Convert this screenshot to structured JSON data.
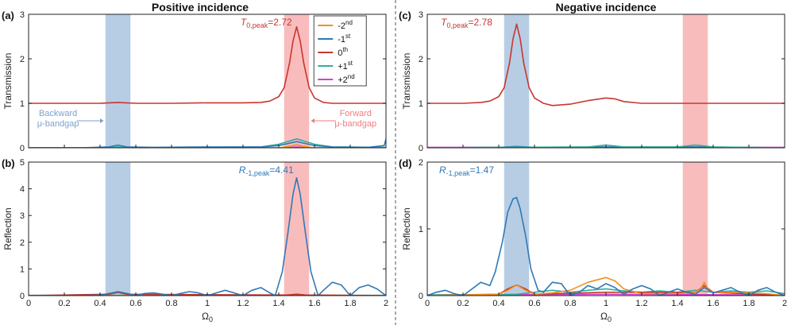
{
  "figure": {
    "left_title": "Positive incidence",
    "right_title": "Negative incidence",
    "xlabel": "Ω",
    "xlabel_sub": "0",
    "colors": {
      "-2nd": "#f28e1c",
      "-1st": "#2f79b5",
      "0th": "#c8362f",
      "+1st": "#2bb09c",
      "+2nd": "#d93fd1"
    },
    "band_colors": {
      "backward": "#b7cde4",
      "forward": "#f9bcbd"
    }
  },
  "legend": [
    {
      "key": "-2nd",
      "base": "-2",
      "sup": "nd"
    },
    {
      "key": "-1st",
      "base": "-1",
      "sup": "st"
    },
    {
      "key": "0th",
      "base": "0",
      "sup": "th"
    },
    {
      "key": "+1st",
      "base": "+1",
      "sup": "st"
    },
    {
      "key": "+2nd",
      "base": "+2",
      "sup": "nd"
    }
  ],
  "annotations": {
    "backward_l1": "Backward",
    "backward_l2": "μ-bandgap",
    "forward_l1": "Forward",
    "forward_l2": "μ-bandgap"
  },
  "chart_data": [
    {
      "id": "a",
      "label": "(a)",
      "type": "line",
      "xlabel": "",
      "ylabel": "Transmission",
      "xlim": [
        0,
        2
      ],
      "ylim": [
        0,
        3
      ],
      "yticks": [
        0,
        1,
        2,
        3
      ],
      "xticks": [],
      "bands": [
        [
          0.43,
          0.57
        ],
        [
          1.43,
          1.57
        ]
      ],
      "peak": {
        "sym": "T",
        "sub": "0,peak",
        "value": "=2.72",
        "color": "#c8362f"
      },
      "series": [
        {
          "name": "0th",
          "color": "#c8362f",
          "x": [
            0,
            0.2,
            0.4,
            0.5,
            0.6,
            0.8,
            1.0,
            1.2,
            1.3,
            1.35,
            1.4,
            1.43,
            1.46,
            1.48,
            1.5,
            1.52,
            1.54,
            1.57,
            1.6,
            1.65,
            1.7,
            1.8,
            2.0
          ],
          "y": [
            1,
            1,
            1,
            1.02,
            1,
            1,
            1.01,
            1.01,
            1.02,
            1.05,
            1.15,
            1.35,
            1.9,
            2.4,
            2.72,
            2.4,
            1.9,
            1.35,
            1.12,
            1.02,
            1.0,
            1.0,
            1.0
          ]
        },
        {
          "name": "-1st",
          "color": "#2f79b5",
          "x": [
            0,
            0.3,
            0.45,
            0.5,
            0.55,
            0.7,
            1.0,
            1.3,
            1.4,
            1.5,
            1.6,
            1.7,
            1.9,
            1.99,
            2.0
          ],
          "y": [
            0,
            0,
            0.02,
            0.06,
            0.02,
            0.01,
            0.02,
            0.02,
            0.05,
            0.14,
            0.05,
            0.02,
            0.01,
            0.05,
            0.2
          ]
        },
        {
          "name": "+1st",
          "color": "#2bb09c",
          "x": [
            0,
            0.4,
            0.5,
            0.6,
            1.0,
            1.3,
            1.4,
            1.5,
            1.6,
            1.7,
            2.0
          ],
          "y": [
            0,
            0,
            0.02,
            0,
            0.01,
            0.02,
            0.08,
            0.2,
            0.08,
            0.02,
            0.01
          ]
        },
        {
          "name": "-2nd",
          "color": "#f28e1c",
          "x": [
            0,
            1.4,
            1.47,
            1.5,
            1.53,
            1.6,
            2.0
          ],
          "y": [
            0,
            0,
            0.04,
            0.07,
            0.04,
            0,
            0
          ]
        },
        {
          "name": "+2nd",
          "color": "#d93fd1",
          "x": [
            0,
            1.45,
            1.5,
            1.55,
            2.0
          ],
          "y": [
            0,
            0,
            0.02,
            0,
            0
          ]
        }
      ]
    },
    {
      "id": "b",
      "label": "(b)",
      "type": "line",
      "xlabel": "Ω0",
      "ylabel": "Reflection",
      "xlim": [
        0,
        2
      ],
      "ylim": [
        0,
        5
      ],
      "yticks": [
        0,
        1,
        2,
        3,
        4,
        5
      ],
      "xticks": [
        0,
        0.2,
        0.4,
        0.6,
        0.8,
        1,
        1.2,
        1.4,
        1.6,
        1.8,
        2
      ],
      "bands": [
        [
          0.43,
          0.57
        ],
        [
          1.43,
          1.57
        ]
      ],
      "peak": {
        "sym": "R",
        "sub": "-1,peak",
        "value": "=4.41",
        "color": "#2f79b5"
      },
      "series": [
        {
          "name": "-1st",
          "color": "#2f79b5",
          "x": [
            0,
            0.3,
            0.4,
            0.45,
            0.5,
            0.55,
            0.6,
            0.65,
            0.7,
            0.75,
            0.8,
            0.85,
            0.9,
            0.95,
            1.0,
            1.05,
            1.1,
            1.15,
            1.2,
            1.25,
            1.3,
            1.35,
            1.38,
            1.42,
            1.45,
            1.48,
            1.5,
            1.52,
            1.55,
            1.58,
            1.62,
            1.65,
            1.7,
            1.75,
            1.8,
            1.85,
            1.9,
            1.95,
            2.0
          ],
          "y": [
            0,
            0,
            0.02,
            0.08,
            0.15,
            0.08,
            0.01,
            0.08,
            0.1,
            0.05,
            0,
            0.08,
            0.15,
            0.1,
            0,
            0.1,
            0.2,
            0.1,
            0,
            0.2,
            0.3,
            0.1,
            0,
            0.9,
            2.3,
            3.8,
            4.41,
            3.8,
            2.3,
            0.9,
            0,
            0.2,
            0.5,
            0.4,
            0,
            0.3,
            0.4,
            0.25,
            0
          ]
        },
        {
          "name": "0th",
          "color": "#c8362f",
          "x": [
            0,
            0.45,
            0.5,
            0.55,
            1.45,
            1.5,
            1.55,
            2.0
          ],
          "y": [
            0,
            0.05,
            0.12,
            0.05,
            0.02,
            0.05,
            0.02,
            0
          ]
        },
        {
          "name": "-2nd",
          "color": "#f28e1c",
          "x": [
            0,
            1.45,
            1.5,
            1.55,
            2.0
          ],
          "y": [
            0,
            0.02,
            0.06,
            0.02,
            0
          ]
        },
        {
          "name": "+1st",
          "color": "#2bb09c",
          "x": [
            0,
            2.0
          ],
          "y": [
            0.01,
            0.01
          ]
        },
        {
          "name": "+2nd",
          "color": "#d93fd1",
          "x": [
            0,
            2.0
          ],
          "y": [
            0,
            0
          ]
        }
      ]
    },
    {
      "id": "c",
      "label": "(c)",
      "type": "line",
      "xlabel": "",
      "ylabel": "Transmission",
      "xlim": [
        0,
        2
      ],
      "ylim": [
        0,
        3
      ],
      "yticks": [
        0,
        1,
        2,
        3
      ],
      "xticks": [],
      "bands": [
        [
          0.43,
          0.57
        ],
        [
          1.43,
          1.57
        ]
      ],
      "peak": {
        "sym": "T",
        "sub": "0,peak",
        "value": "=2.78",
        "color": "#c8362f"
      },
      "series": [
        {
          "name": "0th",
          "color": "#c8362f",
          "x": [
            0,
            0.2,
            0.3,
            0.35,
            0.4,
            0.43,
            0.46,
            0.48,
            0.5,
            0.52,
            0.54,
            0.57,
            0.6,
            0.65,
            0.7,
            0.8,
            0.9,
            1.0,
            1.05,
            1.1,
            1.2,
            1.4,
            1.6,
            1.8,
            2.0
          ],
          "y": [
            1,
            1,
            1.02,
            1.05,
            1.15,
            1.35,
            1.9,
            2.45,
            2.78,
            2.45,
            1.9,
            1.35,
            1.12,
            1.0,
            0.95,
            0.98,
            1.06,
            1.12,
            1.1,
            1.04,
            1.0,
            1.0,
            1.0,
            1.0,
            1.0
          ]
        },
        {
          "name": "+1st",
          "color": "#2bb09c",
          "x": [
            0,
            0.9,
            1.0,
            1.1,
            1.4,
            1.5,
            1.6,
            2.0
          ],
          "y": [
            0,
            0.02,
            0.06,
            0.02,
            0.02,
            0.06,
            0.02,
            0
          ]
        },
        {
          "name": "-1st",
          "color": "#2f79b5",
          "x": [
            0,
            0.4,
            0.5,
            0.6,
            1.0,
            1.5,
            2.0
          ],
          "y": [
            0,
            0.01,
            0.03,
            0.01,
            0.02,
            0.02,
            0
          ]
        },
        {
          "name": "-2nd",
          "color": "#f28e1c",
          "x": [
            0,
            2.0
          ],
          "y": [
            0,
            0
          ]
        },
        {
          "name": "+2nd",
          "color": "#d93fd1",
          "x": [
            0,
            2.0
          ],
          "y": [
            0.01,
            0.01
          ]
        }
      ]
    },
    {
      "id": "d",
      "label": "(d)",
      "type": "line",
      "xlabel": "Ω0",
      "ylabel": "Reflection",
      "xlim": [
        0,
        2
      ],
      "ylim": [
        0,
        2
      ],
      "yticks": [
        0,
        1,
        2
      ],
      "xticks": [
        0,
        0.2,
        0.4,
        0.6,
        0.8,
        1,
        1.2,
        1.4,
        1.6,
        1.8,
        2
      ],
      "bands": [
        [
          0.43,
          0.57
        ],
        [
          1.43,
          1.57
        ]
      ],
      "peak": {
        "sym": "R",
        "sub": "-1,peak",
        "value": "=1.47",
        "color": "#2f79b5"
      },
      "series": [
        {
          "name": "-1st",
          "color": "#2f79b5",
          "x": [
            0,
            0.05,
            0.1,
            0.15,
            0.2,
            0.25,
            0.3,
            0.35,
            0.38,
            0.42,
            0.45,
            0.48,
            0.5,
            0.52,
            0.55,
            0.58,
            0.62,
            0.65,
            0.7,
            0.75,
            0.8,
            0.85,
            0.9,
            0.95,
            1.0,
            1.05,
            1.1,
            1.15,
            1.2,
            1.25,
            1.3,
            1.35,
            1.4,
            1.45,
            1.5,
            1.55,
            1.6,
            1.65,
            1.7,
            1.75,
            1.8,
            1.85,
            1.9,
            1.95,
            2.0
          ],
          "y": [
            0,
            0.05,
            0.08,
            0.03,
            0,
            0.1,
            0.2,
            0.15,
            0.35,
            0.8,
            1.25,
            1.45,
            1.47,
            1.3,
            0.9,
            0.4,
            0.08,
            0.05,
            0.2,
            0.18,
            0,
            0.05,
            0.15,
            0.1,
            0.18,
            0.12,
            0.02,
            0.1,
            0.15,
            0.1,
            0,
            0.05,
            0.1,
            0.05,
            0.02,
            0.12,
            0.04,
            0.08,
            0.12,
            0.05,
            0,
            0.08,
            0.12,
            0.05,
            0
          ]
        },
        {
          "name": "-2nd",
          "color": "#f28e1c",
          "x": [
            0,
            0.4,
            0.45,
            0.5,
            0.55,
            0.6,
            0.7,
            0.8,
            0.9,
            1.0,
            1.05,
            1.1,
            1.2,
            1.4,
            1.5,
            1.53,
            1.55,
            1.57,
            1.6,
            1.7,
            1.9,
            2.0
          ],
          "y": [
            0,
            0.02,
            0.08,
            0.16,
            0.08,
            0.02,
            0.04,
            0.08,
            0.2,
            0.27,
            0.22,
            0.1,
            0.03,
            0.03,
            0.05,
            0.1,
            0.2,
            0.1,
            0.05,
            0.05,
            0.03,
            0
          ]
        },
        {
          "name": "0th",
          "color": "#c8362f",
          "x": [
            0,
            0.4,
            0.45,
            0.5,
            0.55,
            0.6,
            1.0,
            1.5,
            1.55,
            1.6,
            2.0
          ],
          "y": [
            0,
            0.02,
            0.1,
            0.16,
            0.1,
            0.02,
            0.05,
            0.05,
            0.15,
            0.05,
            0
          ]
        },
        {
          "name": "+1st",
          "color": "#2bb09c",
          "x": [
            0,
            0.5,
            0.6,
            0.7,
            0.8,
            0.9,
            1.0,
            1.1,
            1.2,
            1.3,
            1.4,
            1.5,
            1.6,
            1.7,
            1.8,
            1.9,
            2.0
          ],
          "y": [
            0.01,
            0.02,
            0.05,
            0.08,
            0.05,
            0.08,
            0.1,
            0.07,
            0.05,
            0.07,
            0.05,
            0.08,
            0.05,
            0.07,
            0.05,
            0.07,
            0.03
          ]
        },
        {
          "name": "+2nd",
          "color": "#d93fd1",
          "x": [
            0,
            1.0,
            2.0
          ],
          "y": [
            0.01,
            0.02,
            0.01
          ]
        }
      ]
    }
  ]
}
